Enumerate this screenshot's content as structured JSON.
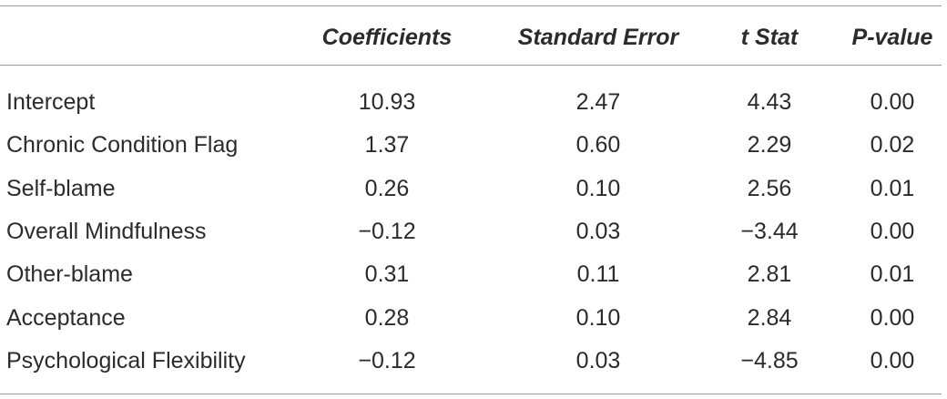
{
  "table": {
    "header": [
      "Coefficients",
      "Standard Error",
      "t Stat",
      "P-value"
    ],
    "rows": [
      [
        "Intercept",
        "10.93",
        "2.47",
        "4.43",
        "0.00"
      ],
      [
        "Chronic Condition Flag",
        "1.37",
        "0.60",
        "2.29",
        "0.02"
      ],
      [
        "Self-blame",
        "0.26",
        "0.10",
        "2.56",
        "0.01"
      ],
      [
        "Overall Mindfulness",
        "−0.12",
        "0.03",
        "−3.44",
        "0.00"
      ],
      [
        "Other-blame",
        "0.31",
        "0.11",
        "2.81",
        "0.01"
      ],
      [
        "Acceptance",
        "0.28",
        "0.10",
        "2.84",
        "0.00"
      ],
      [
        "Psychological Flexibility",
        "−0.12",
        "0.03",
        "−4.85",
        "0.00"
      ]
    ]
  }
}
